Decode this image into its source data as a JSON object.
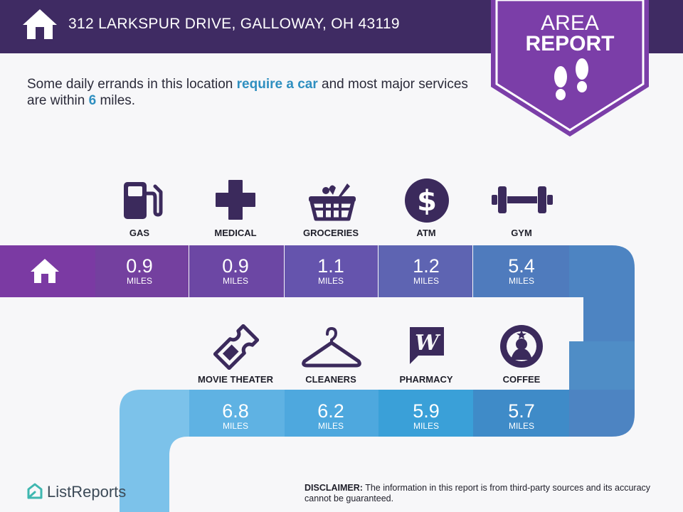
{
  "header": {
    "address": "312 LARKSPUR DRIVE, GALLOWAY, OH 43119"
  },
  "badge": {
    "line1": "AREA",
    "line2": "REPORT"
  },
  "intro": {
    "part1": "Some daily errands in this location ",
    "highlight1": "require a car",
    "part2": " and most major services are within ",
    "highlight2": "6",
    "part3": " miles."
  },
  "row1": [
    {
      "label": "GAS",
      "distance": "0.9",
      "unit": "MILES",
      "icon": "gas-pump-icon"
    },
    {
      "label": "MEDICAL",
      "distance": "0.9",
      "unit": "MILES",
      "icon": "medical-cross-icon"
    },
    {
      "label": "GROCERIES",
      "distance": "1.1",
      "unit": "MILES",
      "icon": "grocery-basket-icon"
    },
    {
      "label": "ATM",
      "distance": "1.2",
      "unit": "MILES",
      "icon": "dollar-coin-icon"
    },
    {
      "label": "GYM",
      "distance": "5.4",
      "unit": "MILES",
      "icon": "dumbbell-icon"
    }
  ],
  "row2": [
    {
      "label": "MOVIE THEATER",
      "distance": "6.8",
      "unit": "MILES",
      "icon": "movie-ticket-icon"
    },
    {
      "label": "CLEANERS",
      "distance": "6.2",
      "unit": "MILES",
      "icon": "hanger-icon"
    },
    {
      "label": "PHARMACY",
      "distance": "5.9",
      "unit": "MILES",
      "icon": "pharmacy-logo-icon"
    },
    {
      "label": "COFFEE",
      "distance": "5.7",
      "unit": "MILES",
      "icon": "coffee-logo-icon"
    }
  ],
  "footer": {
    "brand": "ListReports",
    "disclaimer_label": "DISCLAIMER:",
    "disclaimer_text": " The information in this report is from third-party sources and its accuracy cannot be guaranteed."
  },
  "colors": {
    "header": "#3f2b63",
    "badge": "#7b3ea8",
    "icon": "#3b2a5c",
    "accent_text": "#2f8fc0"
  }
}
